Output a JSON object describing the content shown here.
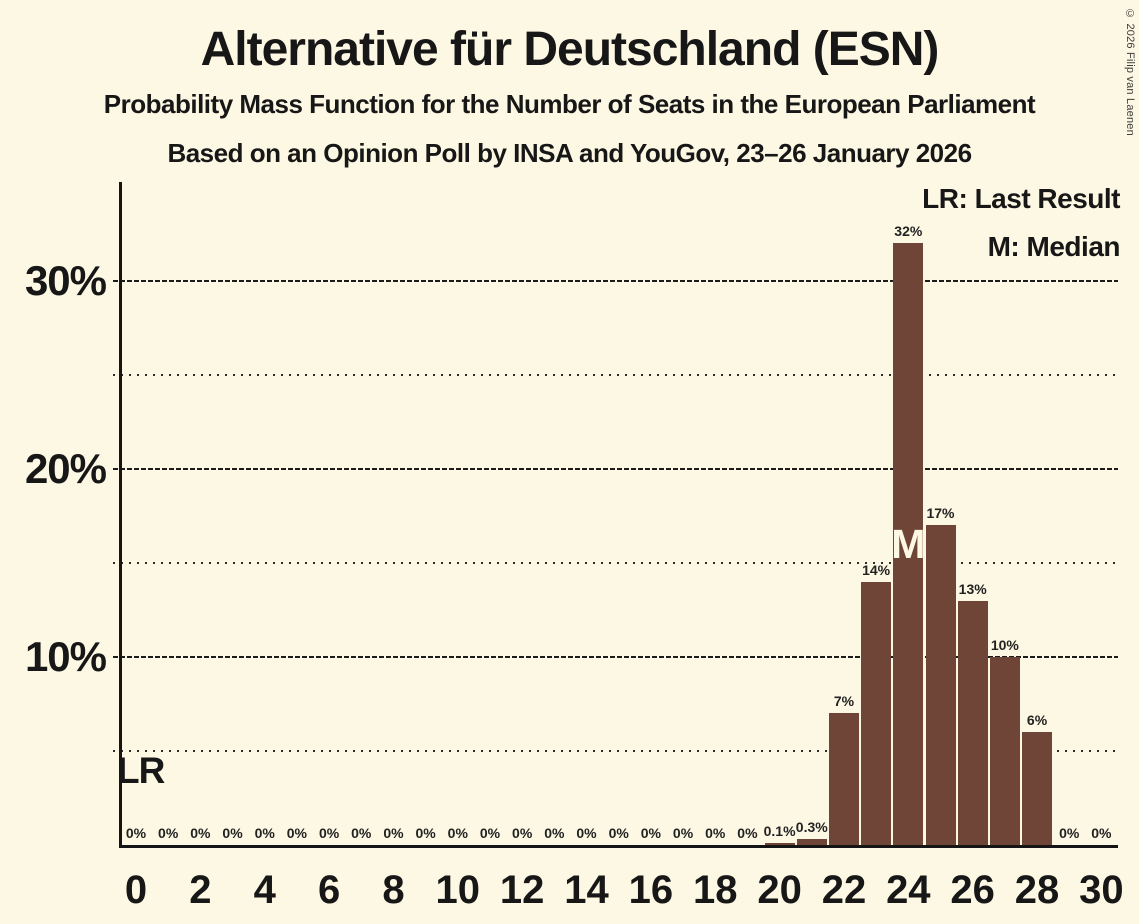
{
  "header": {
    "title": "Alternative für Deutschland (ESN)",
    "subtitle": "Probability Mass Function for the Number of Seats in the European Parliament",
    "poll_line": "Based on an Opinion Poll by INSA and YouGov, 23–26 January 2026"
  },
  "legend": {
    "lr": "LR: Last Result",
    "m": "M: Median"
  },
  "markers": {
    "lr_label": "LR",
    "median_label": "M"
  },
  "copyright": "© 2026 Filip van Laenen",
  "colors": {
    "background": "#fdf8e3",
    "bar": "#6f4538",
    "text": "#1c1c1c",
    "median_text": "#fdf8e3"
  },
  "chart_data": {
    "type": "bar",
    "title": "Alternative für Deutschland (ESN)",
    "x_unit": "seats",
    "categories": [
      0,
      1,
      2,
      3,
      4,
      5,
      6,
      7,
      8,
      9,
      10,
      11,
      12,
      13,
      14,
      15,
      16,
      17,
      18,
      19,
      20,
      21,
      22,
      23,
      24,
      25,
      26,
      27,
      28,
      29,
      30
    ],
    "values": [
      0,
      0,
      0,
      0,
      0,
      0,
      0,
      0,
      0,
      0,
      0,
      0,
      0,
      0,
      0,
      0,
      0,
      0,
      0,
      0,
      0.1,
      0.3,
      7,
      14,
      32,
      17,
      13,
      10,
      6,
      0,
      0
    ],
    "bar_labels": [
      "0%",
      "0%",
      "0%",
      "0%",
      "0%",
      "0%",
      "0%",
      "0%",
      "0%",
      "0%",
      "0%",
      "0%",
      "0%",
      "0%",
      "0%",
      "0%",
      "0%",
      "0%",
      "0%",
      "0%",
      "0.1%",
      "0.3%",
      "7%",
      "14%",
      "32%",
      "17%",
      "13%",
      "10%",
      "6%",
      "0%",
      "0%"
    ],
    "x_tick_labels": [
      "0",
      "2",
      "4",
      "6",
      "8",
      "10",
      "12",
      "14",
      "16",
      "18",
      "20",
      "22",
      "24",
      "26",
      "28",
      "30"
    ],
    "y_ticks": [
      {
        "value": 10,
        "label": "10%"
      },
      {
        "value": 20,
        "label": "20%"
      },
      {
        "value": 30,
        "label": "30%"
      }
    ],
    "y_gridlines": [
      {
        "value": 5,
        "style": "minor"
      },
      {
        "value": 10,
        "style": "major"
      },
      {
        "value": 15,
        "style": "minor"
      },
      {
        "value": 20,
        "style": "major"
      },
      {
        "value": 25,
        "style": "minor"
      },
      {
        "value": 30,
        "style": "major"
      }
    ],
    "median_seat": 24,
    "last_result_seat": 0,
    "ylim": [
      0,
      35
    ],
    "grid": true,
    "legend_position": "top-right"
  }
}
